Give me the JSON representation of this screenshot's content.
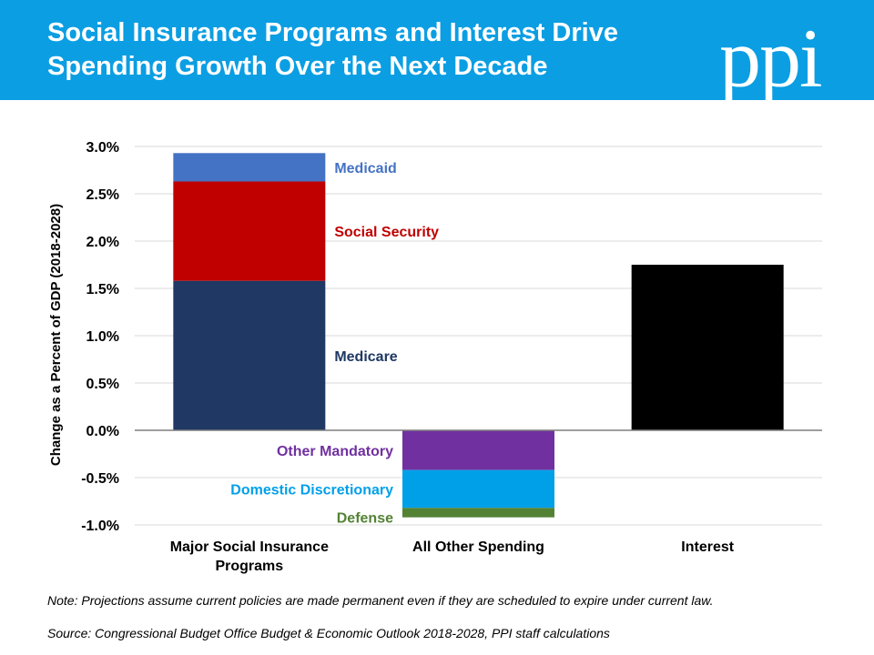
{
  "header": {
    "title": "Social Insurance Programs and Interest Drive Spending Growth Over the Next Decade",
    "logo_text": "ppi"
  },
  "footer": {
    "note": "Note: Projections assume current policies are made permanent even if they are scheduled to expire under current law.",
    "source": "Source: Congressional Budget Office Budget & Economic Outlook 2018-2028, PPI staff calculations"
  },
  "colors": {
    "header_bg": "#0b9ee3",
    "medicare": "#1f3864",
    "social_security": "#c00000",
    "medicaid": "#4472c4",
    "other_mandatory": "#7030a0",
    "domestic_discretionary": "#00a0e9",
    "defense": "#548235",
    "interest": "#000000"
  },
  "chart_data": {
    "type": "bar",
    "stacked": true,
    "ylabel": "Change as a Percent of GDP (2018-2028)",
    "ylim": [
      -1.0,
      3.0
    ],
    "yticks": [
      "3.0%",
      "2.5%",
      "2.0%",
      "1.5%",
      "1.0%",
      "0.5%",
      "0.0%",
      "-0.5%",
      "-1.0%"
    ],
    "ytick_values": [
      3.0,
      2.5,
      2.0,
      1.5,
      1.0,
      0.5,
      0.0,
      -0.5,
      -1.0
    ],
    "grid": true,
    "categories": [
      "Major Social Insurance Programs",
      "All Other Spending",
      "Interest"
    ],
    "category_lines": [
      [
        "Major Social Insurance",
        "Programs"
      ],
      [
        "All Other Spending"
      ],
      [
        "Interest"
      ]
    ],
    "series": [
      {
        "name": "Medicare",
        "values": [
          1.58,
          0,
          0
        ],
        "color": "#1f3864",
        "label_color": "#1f3864"
      },
      {
        "name": "Social Security",
        "values": [
          1.05,
          0,
          0
        ],
        "color": "#c00000",
        "label_color": "#c00000"
      },
      {
        "name": "Medicaid",
        "values": [
          0.3,
          0,
          0
        ],
        "color": "#4472c4",
        "label_color": "#4472c4"
      },
      {
        "name": "Other Mandatory",
        "values": [
          0,
          -0.42,
          0
        ],
        "color": "#7030a0",
        "label_color": "#7030a0"
      },
      {
        "name": "Domestic Discretionary",
        "values": [
          0,
          -0.4,
          0
        ],
        "color": "#00a0e9",
        "label_color": "#00a0e9"
      },
      {
        "name": "Defense",
        "values": [
          0,
          -0.1,
          0
        ],
        "color": "#548235",
        "label_color": "#548235"
      },
      {
        "name": "Interest",
        "values": [
          0,
          0,
          1.75
        ],
        "color": "#000000",
        "label_color": "#000000",
        "show_label": false
      }
    ]
  }
}
